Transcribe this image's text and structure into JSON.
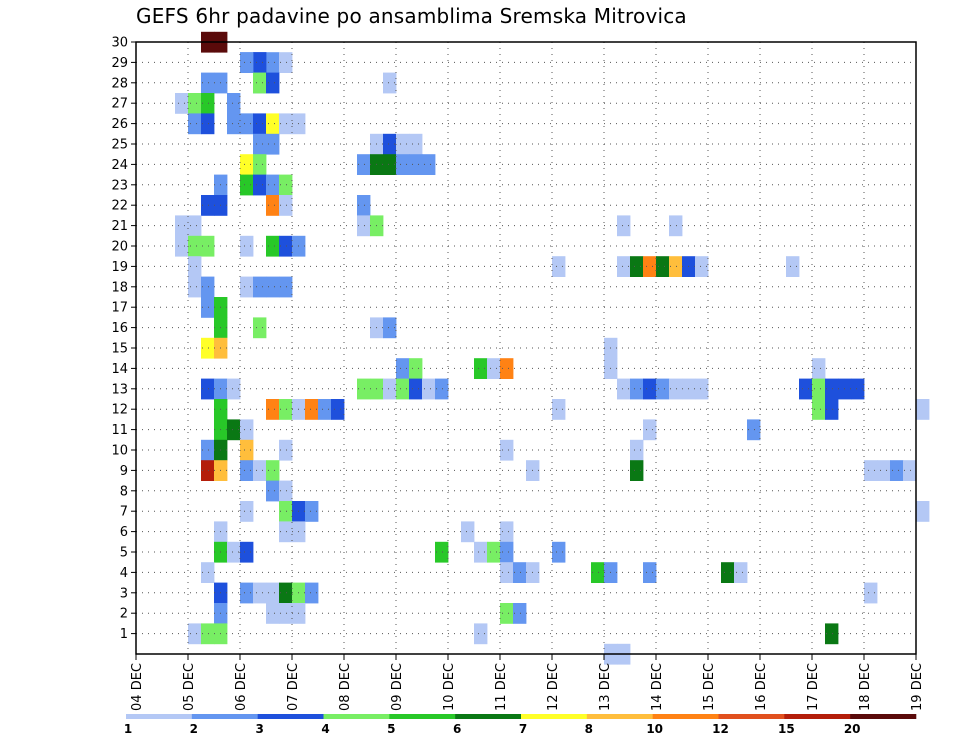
{
  "chart_data": {
    "type": "heatmap",
    "title": "GEFS 6hr padavine po ansamblima Sremska Mitrovica",
    "x_tick_labels": [
      "04 DEC",
      "05 DEC",
      "06 DEC",
      "07 DEC",
      "08 DEC",
      "09 DEC",
      "10 DEC",
      "11 DEC",
      "12 DEC",
      "13 DEC",
      "14 DEC",
      "15 DEC",
      "16 DEC",
      "17 DEC",
      "18 DEC",
      "19 DEC"
    ],
    "y_tick_labels": [
      "1",
      "2",
      "3",
      "4",
      "5",
      "6",
      "7",
      "8",
      "9",
      "10",
      "11",
      "12",
      "13",
      "14",
      "15",
      "16",
      "17",
      "18",
      "19",
      "20",
      "21",
      "22",
      "23",
      "24",
      "25",
      "26",
      "27",
      "28",
      "29",
      "30"
    ],
    "x_range_days": [
      0,
      15
    ],
    "step_hours": 6,
    "y_range": [
      0,
      30
    ],
    "grid": true,
    "colorbar": {
      "labels": [
        "1",
        "2",
        "3",
        "4",
        "5",
        "6",
        "7",
        "8",
        "10",
        "12",
        "15",
        "20"
      ],
      "colors": [
        "#b4c8f5",
        "#6496f0",
        "#1e50dc",
        "#78ee64",
        "#28c828",
        "#0a7814",
        "#ffff28",
        "#ffbe3c",
        "#ff8214",
        "#e1501e",
        "#b41e0a",
        "#5a0a0a"
      ]
    },
    "cells": [
      [
        1,
        30,
        12,
        5
      ],
      [
        2,
        30,
        12,
        6
      ],
      [
        1,
        29,
        2,
        8
      ],
      [
        2,
        29,
        3,
        9
      ],
      [
        3,
        29,
        2,
        10
      ],
      [
        4,
        29,
        3,
        9
      ],
      [
        5,
        29,
        2,
        8
      ],
      [
        6,
        29,
        1,
        11
      ],
      [
        1,
        28,
        2,
        5
      ],
      [
        2,
        28,
        2,
        6
      ],
      [
        3,
        28,
        2,
        9
      ],
      [
        4,
        28,
        4,
        9
      ],
      [
        5,
        28,
        3,
        10
      ],
      [
        6,
        28,
        1,
        19
      ],
      [
        1,
        27,
        1,
        3
      ],
      [
        2,
        27,
        4,
        4
      ],
      [
        3,
        27,
        5,
        5
      ],
      [
        4,
        27,
        2,
        7
      ],
      [
        1,
        26,
        2,
        4
      ],
      [
        2,
        26,
        3,
        5
      ],
      [
        3,
        26,
        2,
        7
      ],
      [
        4,
        26,
        1,
        8
      ],
      [
        5,
        26,
        2,
        8
      ],
      [
        6,
        26,
        3,
        9
      ],
      [
        7,
        26,
        7,
        10
      ],
      [
        8,
        26,
        1,
        11
      ],
      [
        9,
        26,
        1,
        12
      ],
      [
        1,
        25,
        2,
        9
      ],
      [
        2,
        25,
        2,
        10
      ],
      [
        3,
        25,
        1,
        18
      ],
      [
        4,
        25,
        3,
        19
      ],
      [
        5,
        25,
        1,
        20
      ],
      [
        6,
        25,
        1,
        21
      ],
      [
        1,
        24,
        7,
        8
      ],
      [
        2,
        24,
        4,
        9
      ],
      [
        3,
        24,
        2,
        17
      ],
      [
        4,
        24,
        6,
        18
      ],
      [
        5,
        24,
        6,
        19
      ],
      [
        6,
        24,
        2,
        20
      ],
      [
        7,
        24,
        2,
        21
      ],
      [
        8,
        24,
        2,
        22
      ],
      [
        1,
        23,
        2,
        6
      ],
      [
        2,
        23,
        5,
        8
      ],
      [
        3,
        23,
        3,
        9
      ],
      [
        4,
        23,
        2,
        10
      ],
      [
        5,
        23,
        4,
        11
      ],
      [
        1,
        22,
        3,
        5
      ],
      [
        2,
        22,
        3,
        6
      ],
      [
        3,
        22,
        9,
        10
      ],
      [
        4,
        22,
        1,
        11
      ],
      [
        5,
        22,
        2,
        17
      ],
      [
        1,
        21,
        1,
        3
      ],
      [
        2,
        21,
        1,
        4
      ],
      [
        3,
        21,
        1,
        17
      ],
      [
        4,
        21,
        4,
        18
      ],
      [
        5,
        21,
        1,
        37
      ],
      [
        6,
        21,
        1,
        41
      ],
      [
        1,
        20,
        1,
        3
      ],
      [
        2,
        20,
        4,
        4
      ],
      [
        3,
        20,
        4,
        5
      ],
      [
        4,
        20,
        1,
        8
      ],
      [
        5,
        20,
        5,
        10
      ],
      [
        6,
        20,
        3,
        11
      ],
      [
        7,
        20,
        2,
        12
      ],
      [
        1,
        19,
        1,
        4
      ],
      [
        2,
        19,
        1,
        32
      ],
      [
        3,
        19,
        1,
        37
      ],
      [
        4,
        19,
        6,
        38
      ],
      [
        5,
        19,
        9,
        39
      ],
      [
        6,
        19,
        6,
        40
      ],
      [
        7,
        19,
        8,
        41
      ],
      [
        8,
        19,
        3,
        42
      ],
      [
        9,
        19,
        1,
        43
      ],
      [
        10,
        19,
        1,
        50
      ],
      [
        1,
        18,
        1,
        4
      ],
      [
        2,
        18,
        2,
        5
      ],
      [
        3,
        18,
        1,
        8
      ],
      [
        4,
        18,
        2,
        9
      ],
      [
        5,
        18,
        2,
        10
      ],
      [
        6,
        18,
        2,
        11
      ],
      [
        1,
        17,
        2,
        5
      ],
      [
        2,
        17,
        5,
        6
      ],
      [
        1,
        16,
        5,
        6
      ],
      [
        2,
        16,
        4,
        9
      ],
      [
        3,
        16,
        1,
        18
      ],
      [
        4,
        16,
        2,
        19
      ],
      [
        1,
        15,
        7,
        5
      ],
      [
        2,
        15,
        8,
        6
      ],
      [
        3,
        15,
        1,
        36
      ],
      [
        1,
        14,
        2,
        20
      ],
      [
        2,
        14,
        4,
        21
      ],
      [
        3,
        14,
        5,
        26
      ],
      [
        4,
        14,
        1,
        27
      ],
      [
        5,
        14,
        9,
        28
      ],
      [
        6,
        14,
        1,
        36
      ],
      [
        7,
        14,
        1,
        52
      ],
      [
        1,
        13,
        3,
        5
      ],
      [
        2,
        13,
        2,
        6
      ],
      [
        3,
        13,
        1,
        7
      ],
      [
        4,
        13,
        4,
        17
      ],
      [
        5,
        13,
        4,
        18
      ],
      [
        6,
        13,
        1,
        19
      ],
      [
        7,
        13,
        4,
        20
      ],
      [
        8,
        13,
        3,
        21
      ],
      [
        9,
        13,
        1,
        22
      ],
      [
        10,
        13,
        2,
        23
      ],
      [
        11,
        13,
        1,
        37
      ],
      [
        12,
        13,
        2,
        38
      ],
      [
        13,
        13,
        3,
        39
      ],
      [
        14,
        13,
        2,
        40
      ],
      [
        15,
        13,
        1,
        41
      ],
      [
        16,
        13,
        1,
        42
      ],
      [
        17,
        13,
        1,
        43
      ],
      [
        18,
        13,
        3,
        51
      ],
      [
        19,
        13,
        4,
        52
      ],
      [
        20,
        13,
        3,
        53
      ],
      [
        21,
        13,
        3,
        54
      ],
      [
        22,
        13,
        3,
        55
      ],
      [
        1,
        12,
        5,
        6
      ],
      [
        2,
        12,
        9,
        10
      ],
      [
        3,
        12,
        4,
        11
      ],
      [
        4,
        12,
        1,
        12
      ],
      [
        5,
        12,
        9,
        13
      ],
      [
        6,
        12,
        2,
        14
      ],
      [
        7,
        12,
        3,
        15
      ],
      [
        8,
        12,
        1,
        32
      ],
      [
        9,
        12,
        4,
        52
      ],
      [
        10,
        12,
        3,
        53
      ],
      [
        11,
        12,
        1,
        60
      ],
      [
        1,
        11,
        5,
        6
      ],
      [
        2,
        11,
        6,
        7
      ],
      [
        3,
        11,
        1,
        8
      ],
      [
        4,
        11,
        1,
        39
      ],
      [
        5,
        11,
        2,
        47
      ],
      [
        1,
        10,
        2,
        5
      ],
      [
        2,
        10,
        6,
        6
      ],
      [
        3,
        10,
        8,
        8
      ],
      [
        4,
        10,
        1,
        11
      ],
      [
        5,
        10,
        1,
        28
      ],
      [
        6,
        10,
        1,
        38
      ],
      [
        1,
        9,
        11,
        5
      ],
      [
        2,
        9,
        8,
        6
      ],
      [
        3,
        9,
        2,
        8
      ],
      [
        4,
        9,
        1,
        9
      ],
      [
        5,
        9,
        4,
        10
      ],
      [
        6,
        9,
        1,
        30
      ],
      [
        7,
        9,
        6,
        38
      ],
      [
        8,
        9,
        1,
        56
      ],
      [
        9,
        9,
        1,
        57
      ],
      [
        10,
        9,
        2,
        58
      ],
      [
        11,
        9,
        1,
        59
      ],
      [
        1,
        8,
        2,
        10
      ],
      [
        2,
        8,
        1,
        11
      ],
      [
        1,
        7,
        1,
        8
      ],
      [
        2,
        7,
        4,
        11
      ],
      [
        3,
        7,
        3,
        12
      ],
      [
        4,
        7,
        2,
        13
      ],
      [
        5,
        7,
        1,
        60
      ],
      [
        1,
        6,
        1,
        6
      ],
      [
        2,
        6,
        1,
        11
      ],
      [
        3,
        6,
        1,
        12
      ],
      [
        4,
        6,
        1,
        25
      ],
      [
        5,
        6,
        1,
        28
      ],
      [
        1,
        5,
        5,
        6
      ],
      [
        2,
        5,
        1,
        7
      ],
      [
        3,
        5,
        3,
        8
      ],
      [
        4,
        5,
        5,
        23
      ],
      [
        5,
        5,
        1,
        26
      ],
      [
        6,
        5,
        4,
        27
      ],
      [
        7,
        5,
        2,
        28
      ],
      [
        8,
        5,
        2,
        32
      ],
      [
        1,
        4,
        1,
        5
      ],
      [
        2,
        4,
        1,
        28
      ],
      [
        3,
        4,
        2,
        29
      ],
      [
        4,
        4,
        1,
        30
      ],
      [
        5,
        4,
        5,
        35
      ],
      [
        6,
        4,
        2,
        36
      ],
      [
        7,
        4,
        2,
        39
      ],
      [
        8,
        4,
        6,
        45
      ],
      [
        9,
        4,
        1,
        46
      ],
      [
        1,
        3,
        3,
        6
      ],
      [
        2,
        3,
        2,
        8
      ],
      [
        3,
        3,
        1,
        9
      ],
      [
        4,
        3,
        1,
        10
      ],
      [
        5,
        3,
        6,
        11
      ],
      [
        6,
        3,
        4,
        12
      ],
      [
        7,
        3,
        2,
        13
      ],
      [
        8,
        3,
        1,
        56
      ],
      [
        1,
        2,
        2,
        6
      ],
      [
        2,
        2,
        1,
        10
      ],
      [
        3,
        2,
        1,
        11
      ],
      [
        4,
        2,
        1,
        12
      ],
      [
        5,
        2,
        4,
        28
      ],
      [
        6,
        2,
        2,
        29
      ],
      [
        1,
        1,
        1,
        4
      ],
      [
        2,
        1,
        4,
        5
      ],
      [
        3,
        1,
        4,
        6
      ],
      [
        4,
        1,
        1,
        26
      ],
      [
        5,
        1,
        6,
        53
      ],
      [
        1,
        0,
        1,
        36
      ],
      [
        2,
        0,
        1,
        37
      ]
    ]
  }
}
